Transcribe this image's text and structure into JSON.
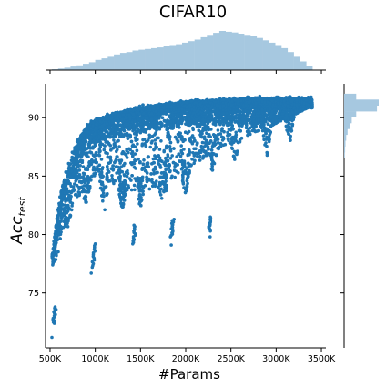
{
  "chart_data": {
    "type": "scatter",
    "title": "CIFAR10",
    "xlabel": "#Params",
    "ylabel_main": "Acc",
    "ylabel_sub": "test",
    "xlim": [
      450000,
      3550000
    ],
    "ylim": [
      70.3,
      92.9
    ],
    "xticks": [
      {
        "v": 500000,
        "label": "500K"
      },
      {
        "v": 1000000,
        "label": "1000K"
      },
      {
        "v": 1500000,
        "label": "1500K"
      },
      {
        "v": 2000000,
        "label": "2000K"
      },
      {
        "v": 2500000,
        "label": "2500K"
      },
      {
        "v": 3000000,
        "label": "3000K"
      },
      {
        "v": 3500000,
        "label": "3500K"
      }
    ],
    "yticks": [
      {
        "v": 75,
        "label": "75"
      },
      {
        "v": 80,
        "label": "80"
      },
      {
        "v": 85,
        "label": "85"
      },
      {
        "v": 90,
        "label": "90"
      }
    ],
    "point_color": "#1f77b4",
    "hist_color": "#a6c8e0",
    "grid": false,
    "upper_envelope": [
      [
        520000,
        78
      ],
      [
        600000,
        83
      ],
      [
        700000,
        86
      ],
      [
        800000,
        88
      ],
      [
        900000,
        89.2
      ],
      [
        1000000,
        89.8
      ],
      [
        1200000,
        90.4
      ],
      [
        1500000,
        90.9
      ],
      [
        2000000,
        91.4
      ],
      [
        2500000,
        91.6
      ],
      [
        3000000,
        91.7
      ],
      [
        3400000,
        91.6
      ]
    ],
    "lower_envelope": [
      [
        560000,
        77.5
      ],
      [
        700000,
        82
      ],
      [
        900000,
        84
      ],
      [
        1000000,
        85
      ],
      [
        1300000,
        84
      ],
      [
        1500000,
        83.5
      ],
      [
        1800000,
        84.5
      ],
      [
        2100000,
        86
      ],
      [
        2400000,
        87.5
      ],
      [
        2700000,
        88.5
      ],
      [
        3000000,
        89.5
      ],
      [
        3400000,
        91
      ]
    ],
    "outlier_clusters": [
      {
        "x": 540000,
        "y_min": 72.4,
        "y_max": 73.8
      },
      {
        "x": 975000,
        "y_min": 77.2,
        "y_max": 79.2
      },
      {
        "x": 1420000,
        "y_min": 79.2,
        "y_max": 80.8
      },
      {
        "x": 1840000,
        "y_min": 79.8,
        "y_max": 81.3
      },
      {
        "x": 2260000,
        "y_min": 80.3,
        "y_max": 81.5
      }
    ],
    "outlier_points": [
      {
        "x": 520000,
        "y": 71.2
      },
      {
        "x": 530000,
        "y": 77.4
      },
      {
        "x": 955000,
        "y": 76.7
      },
      {
        "x": 1840000,
        "y": 79.1
      },
      {
        "x": 2270000,
        "y": 79.8
      }
    ],
    "lobe_minima": [
      {
        "x": 700000,
        "y": 82
      },
      {
        "x": 900000,
        "y": 84
      },
      {
        "x": 1100000,
        "y": 83.2
      },
      {
        "x": 1300000,
        "y": 83.4
      },
      {
        "x": 1500000,
        "y": 83.8
      },
      {
        "x": 1750000,
        "y": 84.1
      },
      {
        "x": 2000000,
        "y": 84.8
      },
      {
        "x": 2300000,
        "y": 86.6
      },
      {
        "x": 2550000,
        "y": 87.3
      },
      {
        "x": 2900000,
        "y": 88.2
      },
      {
        "x": 3150000,
        "y": 89.1
      }
    ],
    "x_hist_density": [
      0.02,
      0.04,
      0.06,
      0.09,
      0.12,
      0.16,
      0.2,
      0.26,
      0.3,
      0.34,
      0.4,
      0.44,
      0.46,
      0.5,
      0.52,
      0.54,
      0.56,
      0.58,
      0.62,
      0.64,
      0.66,
      0.7,
      0.74,
      0.78,
      0.84,
      0.9,
      0.95,
      1.0,
      0.98,
      0.96,
      0.93,
      0.9,
      0.86,
      0.82,
      0.76,
      0.7,
      0.64,
      0.56,
      0.46,
      0.34,
      0.22,
      0.1
    ],
    "y_hist_density": [
      {
        "y": 91.8,
        "d": 0.35
      },
      {
        "y": 91.3,
        "d": 1.0
      },
      {
        "y": 90.8,
        "d": 0.95
      },
      {
        "y": 90.3,
        "d": 0.35
      },
      {
        "y": 89.8,
        "d": 0.22
      },
      {
        "y": 89.3,
        "d": 0.16
      },
      {
        "y": 88.8,
        "d": 0.1
      },
      {
        "y": 88.3,
        "d": 0.06
      },
      {
        "y": 87.8,
        "d": 0.04
      },
      {
        "y": 87.3,
        "d": 0.03
      },
      {
        "y": 86.8,
        "d": 0.02
      }
    ]
  }
}
